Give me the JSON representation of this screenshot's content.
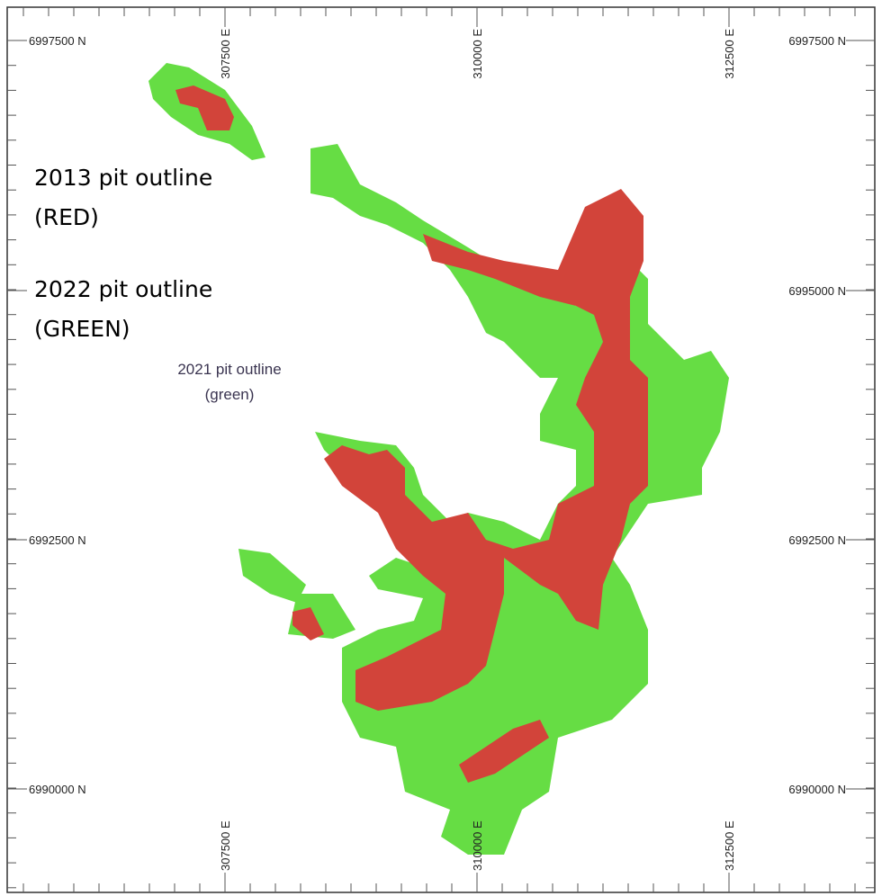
{
  "map": {
    "top_eastings": [
      "307500 E",
      "310000 E",
      "312500 E"
    ],
    "bottom_eastings": [
      "307500 E",
      "310000 E",
      "312500 E"
    ],
    "left_northings": [
      "6997500 N",
      "6992500 N",
      "6990000 N"
    ],
    "right_northings": [
      "6997500 N",
      "6995000 N",
      "6992500 N",
      "6990000 N"
    ],
    "annotations": {
      "red_title": "2013 pit outline",
      "red_note": "(RED)",
      "green_title": "2022 pit outline",
      "green_note": "(GREEN)",
      "inner_title": "2021 pit outline",
      "inner_note": "(green)"
    }
  }
}
